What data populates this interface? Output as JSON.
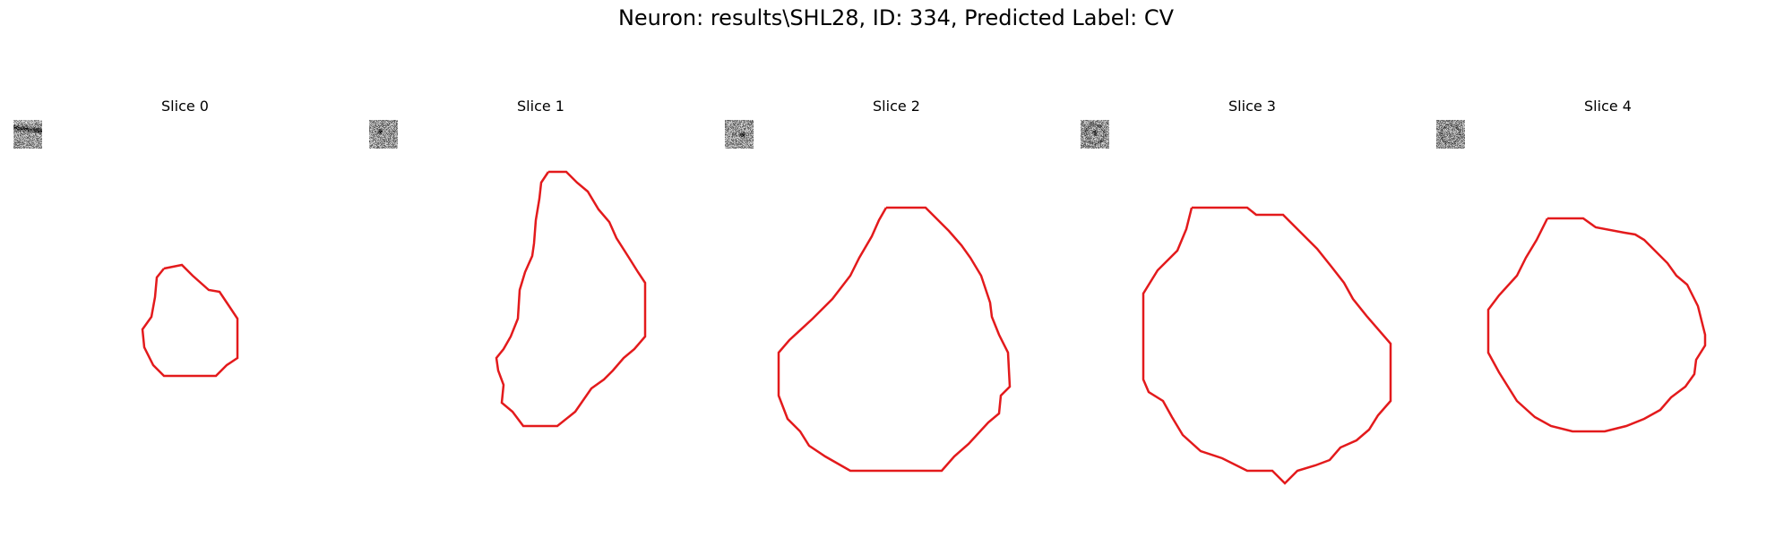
{
  "figure_title": "Neuron: results\\SHL28, ID: 334, Predicted Label: CV",
  "slices": [
    {
      "title": "Slice 0",
      "seed": 11,
      "dark_band": true,
      "dark_blob": false
    },
    {
      "title": "Slice 1",
      "seed": 23,
      "dark_band": false,
      "dark_blob": true
    },
    {
      "title": "Slice 2",
      "seed": 37,
      "dark_band": false,
      "dark_blob": true
    },
    {
      "title": "Slice 3",
      "seed": 41,
      "dark_band": false,
      "dark_blob": true
    },
    {
      "title": "Slice 4",
      "seed": 53,
      "dark_band": false,
      "dark_blob": false
    }
  ],
  "contour_color": "#e31a1c",
  "colormap": "gray"
}
